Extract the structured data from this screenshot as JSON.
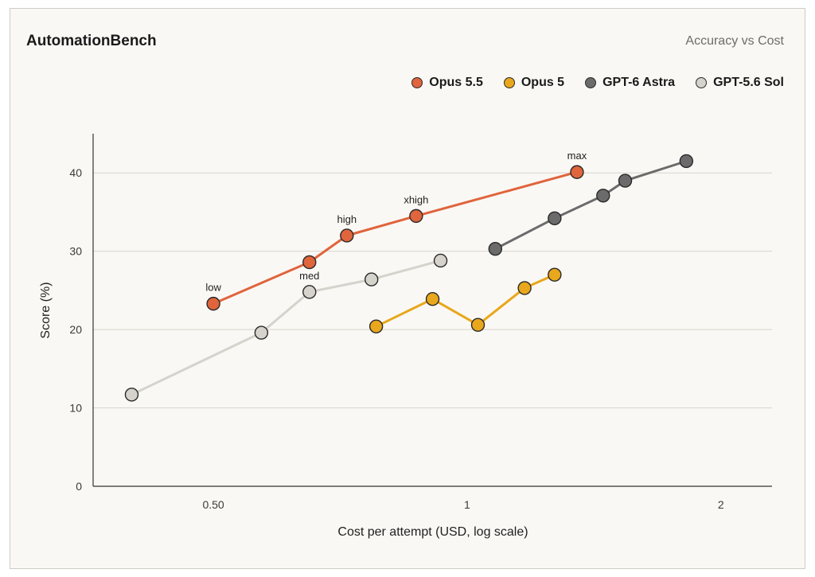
{
  "chart_data": {
    "type": "line",
    "title": "AutomationBench",
    "subtitle": "Accuracy vs Cost",
    "xlabel": "Cost per attempt (USD, log scale)",
    "ylabel": "Score (%)",
    "xscale": "log",
    "xlim": [
      0.36,
      2.3
    ],
    "ylim": [
      0,
      45
    ],
    "xticks": [
      {
        "value": 0.5,
        "label": "0.50"
      },
      {
        "value": 1,
        "label": "1"
      },
      {
        "value": 2,
        "label": "2"
      }
    ],
    "yticks": [
      0,
      10,
      20,
      30,
      40
    ],
    "grid": "horizontal",
    "legend_position": "top-right",
    "series": [
      {
        "name": "Opus 5.5",
        "color": "#e0643c",
        "points": [
          {
            "x": 0.5,
            "y": 23.3,
            "label": "low"
          },
          {
            "x": 0.65,
            "y": 28.6,
            "label": ""
          },
          {
            "x": 0.72,
            "y": 32.0,
            "label": "high"
          },
          {
            "x": 0.87,
            "y": 34.5,
            "label": "xhigh"
          },
          {
            "x": 1.35,
            "y": 40.1,
            "label": "max"
          }
        ]
      },
      {
        "name": "Opus 5",
        "color": "#e8a71c",
        "points": [
          {
            "x": 0.78,
            "y": 20.4
          },
          {
            "x": 0.91,
            "y": 23.9
          },
          {
            "x": 1.03,
            "y": 20.6
          },
          {
            "x": 1.17,
            "y": 25.3
          },
          {
            "x": 1.27,
            "y": 27.0
          }
        ]
      },
      {
        "name": "GPT-6 Astra",
        "color": "#6b6b6b",
        "points": [
          {
            "x": 1.08,
            "y": 30.3
          },
          {
            "x": 1.27,
            "y": 34.2
          },
          {
            "x": 1.45,
            "y": 37.1
          },
          {
            "x": 1.54,
            "y": 39.0
          },
          {
            "x": 1.82,
            "y": 41.5
          }
        ]
      },
      {
        "name": "GPT-5.6 Sol",
        "color": "#d6d3cc",
        "points": [
          {
            "x": 0.4,
            "y": 11.7
          },
          {
            "x": 0.57,
            "y": 19.6
          },
          {
            "x": 0.65,
            "y": 24.8,
            "label": "med"
          },
          {
            "x": 0.77,
            "y": 26.4
          },
          {
            "x": 0.93,
            "y": 28.8
          }
        ]
      }
    ]
  }
}
